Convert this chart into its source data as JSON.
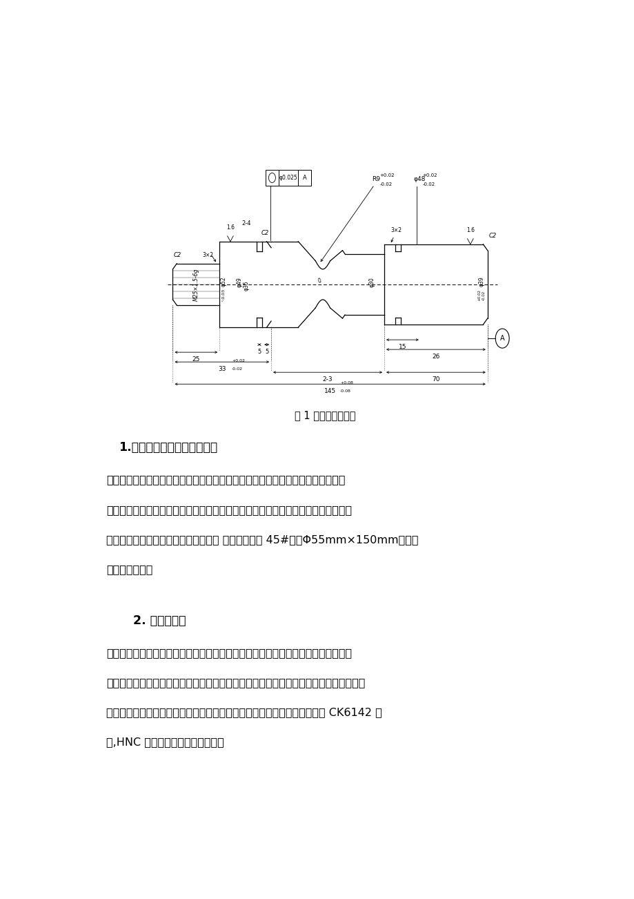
{
  "bg_color": "#ffffff",
  "page_width": 9.2,
  "page_height": 13.02,
  "fig_caption": "图 1 典型轴类零件图",
  "section1_title": "1.对零件的分析及毛坏的选择",
  "section2_title": "2. 设备的选择",
  "lines1": [
    "　　该零件表面由圆柱面、圆锥面、圆弧面、螺纹面及沟槽等表面组成。该零件的",
    "几何元素之间的关系表达的很清楚完整，其中多个直径的尺寸精度有较严格的要求，",
    "零件的表面部分表面粗糙度要求也较高 。选用毛坏为 45#鉢，Φ55mm×150mm，无热",
    "处理和硬度要求"
  ],
  "lines2": [
    "　据该零件的外形是轴类零件，比较适合在车床上加工，由于零件上既有切槽尺寸精",
    "度又有圆弧数值精度，在普通车床上是难以保证其技术要求。所以要想保证技术要求，只",
    "有在数控车床上加工才能保证其加工的尺寸精度和表面质量。机床我们选用 CK6142 车",
    "床,HNC 数控系统。其参数如下表："
  ],
  "line_color": "#000000"
}
